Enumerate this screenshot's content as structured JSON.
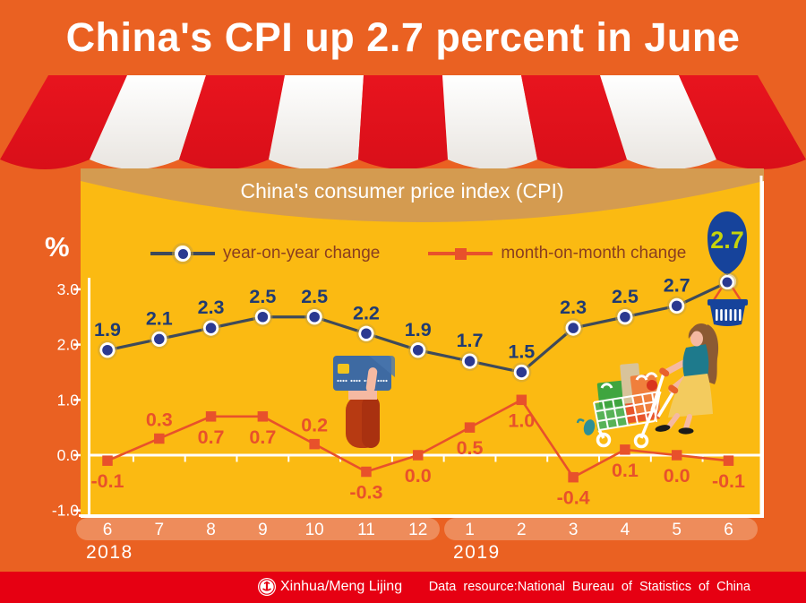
{
  "header": {
    "title": "China's CPI up 2.7 percent in June"
  },
  "footer": {
    "credit": "Xinhua/Meng Lijing",
    "source": "Data resource:National Bureau of Statistics of China",
    "logo": "xinhua-emblem-icon"
  },
  "colors": {
    "background_orange": "#EA6122",
    "panel_yellow": "#FBBA12",
    "awning_red": "#E8141E",
    "title_band_tan": "#D49B50",
    "footer_red": "#E60012",
    "yoy_line": "#3E4A5A",
    "yoy_marker": "#2B3990",
    "yoy_label": "#1F3A72",
    "mom_line": "#E8512B",
    "legend_text": "#8A3E20",
    "pill_orange": "#EE8C5B",
    "balloon_blue": "#16439B",
    "balloon_text": "#C6D40B",
    "axis_white": "#FFFFFF"
  },
  "chart_data": {
    "type": "line",
    "title": "China's consumer price index (CPI)",
    "ylabel": "%",
    "ylim": [
      -1.0,
      3.0
    ],
    "grid": "zero-line-only",
    "legend_position": "top",
    "yticks": [
      {
        "value": 3.0,
        "label": "3.0"
      },
      {
        "value": 2.0,
        "label": "2.0"
      },
      {
        "value": 1.0,
        "label": "1.0"
      },
      {
        "value": 0.0,
        "label": "0.0"
      },
      {
        "value": -1.0,
        "label": "-1.0"
      }
    ],
    "x_years": [
      {
        "label": "2018",
        "months": [
          "6",
          "7",
          "8",
          "9",
          "10",
          "11",
          "12"
        ]
      },
      {
        "label": "2019",
        "months": [
          "1",
          "2",
          "3",
          "4",
          "5",
          "6"
        ]
      }
    ],
    "series": [
      {
        "name": "year-on-year change",
        "marker": "circle",
        "color": "#3E4A5A",
        "marker_color": "#2B3990",
        "values": [
          1.9,
          2.1,
          2.3,
          2.5,
          2.5,
          2.2,
          1.9,
          1.7,
          1.5,
          2.3,
          2.5,
          2.7,
          2.7
        ],
        "labels": [
          "1.9",
          "2.1",
          "2.3",
          "2.5",
          "2.5",
          "2.2",
          "1.9",
          "1.7",
          "1.5",
          "2.3",
          "2.5",
          "2.7",
          ""
        ],
        "label_side": [
          "a",
          "a",
          "a",
          "a",
          "a",
          "a",
          "a",
          "a",
          "a",
          "a",
          "a",
          "a",
          ""
        ],
        "display_offsets": {
          "12": -27
        }
      },
      {
        "name": "month-on-month change",
        "marker": "square",
        "color": "#E8512B",
        "marker_color": "#E8512B",
        "values": [
          -0.1,
          0.3,
          0.7,
          0.7,
          0.2,
          -0.3,
          0.0,
          0.5,
          1.0,
          -0.4,
          0.1,
          0.0,
          -0.1
        ],
        "labels": [
          "-0.1",
          "0.3",
          "0.7",
          "0.7",
          "0.2",
          "-0.3",
          "0.0",
          "0.5",
          "1.0",
          "-0.4",
          "0.1",
          "0.0",
          "-0.1"
        ],
        "label_side": [
          "b",
          "a",
          "b",
          "b",
          "a",
          "b",
          "b",
          "b",
          "b",
          "b",
          "b",
          "b",
          "b"
        ],
        "display_offsets": {}
      }
    ],
    "callout": {
      "value": "2.7",
      "shape": "balloon",
      "month": "6",
      "year": "2019"
    }
  }
}
